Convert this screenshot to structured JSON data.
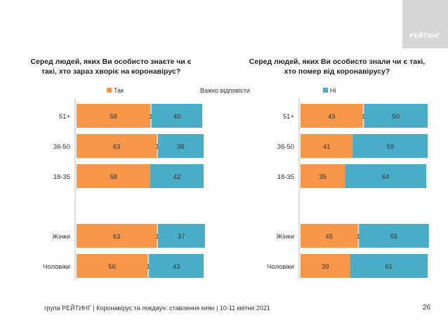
{
  "logo": {
    "text": "РЕЙТИНГ"
  },
  "footer": {
    "text": "група РЕЙТИНГ  | Коронавірус та локдаун: ставлення киян  | 10-11 квітня 2021"
  },
  "page_number": "26",
  "colors": {
    "yes": "#f79646",
    "dont_know": "#d9d9d9",
    "no": "#4bacc6"
  },
  "chart_data": [
    {
      "type": "bar",
      "orientation": "horizontal",
      "stacked": true,
      "title": "Серед людей, яких Ви особисто знаєте чи є такі, хто зараз хворіє на коронавірус?",
      "title_lines": [
        "Серед людей, яких Ви особисто знаєте чи є",
        "такі, хто зараз хворіє на коронавірус?"
      ],
      "categories": [
        "51+",
        "36-50",
        "18-35",
        "Жінки",
        "Чоловіки"
      ],
      "series": [
        {
          "name": "Так",
          "values": [
            58,
            63,
            58,
            63,
            56
          ]
        },
        {
          "name": "Важко відповісти",
          "values": [
            1,
            1,
            0,
            1,
            1
          ]
        },
        {
          "name": "Ні",
          "values": [
            40,
            36,
            42,
            37,
            43
          ]
        }
      ],
      "xlim": [
        0,
        100
      ]
    },
    {
      "type": "bar",
      "orientation": "horizontal",
      "stacked": true,
      "title": "Серед людей, яких Ви особисто знали чи є такі, хто помер від коронавірусу?",
      "title_lines": [
        "Серед людей, яких Ви особисто знали чи є такі,",
        "хто помер від коронавірусу?"
      ],
      "categories": [
        "51+",
        "36-50",
        "18-35",
        "Жінки",
        "Чоловіки"
      ],
      "series": [
        {
          "name": "Так",
          "values": [
            49,
            41,
            35,
            45,
            39
          ]
        },
        {
          "name": "Важко відповісти",
          "values": [
            1,
            0,
            0,
            1,
            0
          ]
        },
        {
          "name": "Ні",
          "values": [
            50,
            59,
            64,
            55,
            61
          ]
        }
      ],
      "xlim": [
        0,
        100
      ]
    }
  ]
}
